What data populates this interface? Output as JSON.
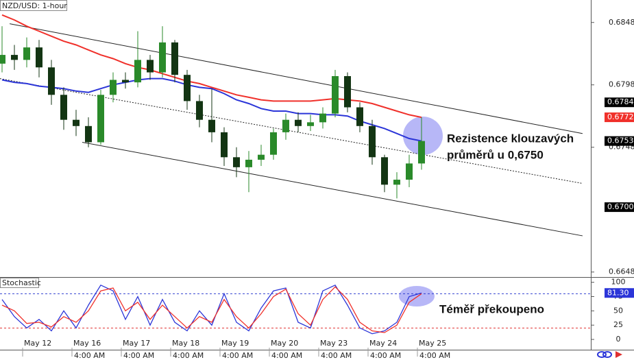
{
  "chart_data": [
    {
      "type": "candlestick",
      "title": "NZD/USD: 1-hour",
      "x": [
        -10,
        -4,
        2,
        8,
        14,
        20,
        26,
        32,
        38,
        44,
        50,
        56,
        62,
        68,
        74,
        80,
        86,
        92,
        98,
        104,
        110,
        116,
        122,
        128,
        134,
        140,
        146,
        152,
        158,
        164,
        170,
        176,
        182,
        188,
        194
      ],
      "open": [
        0.6815,
        0.6822,
        0.6818,
        0.6828,
        0.6812,
        0.679,
        0.677,
        0.6765,
        0.6752,
        0.679,
        0.6802,
        0.68,
        0.6818,
        0.6808,
        0.6832,
        0.6806,
        0.6785,
        0.677,
        0.676,
        0.674,
        0.6732,
        0.6738,
        0.6742,
        0.676,
        0.677,
        0.6765,
        0.6768,
        0.6775,
        0.6805,
        0.678,
        0.6765,
        0.674,
        0.6718,
        0.6722,
        0.6735
      ],
      "high": [
        0.6845,
        0.683,
        0.6836,
        0.6834,
        0.6818,
        0.6796,
        0.6778,
        0.6772,
        0.6794,
        0.6808,
        0.6808,
        0.6841,
        0.6822,
        0.6845,
        0.6834,
        0.681,
        0.679,
        0.6795,
        0.6764,
        0.6748,
        0.6745,
        0.675,
        0.6763,
        0.6775,
        0.6776,
        0.6774,
        0.678,
        0.681,
        0.6808,
        0.6784,
        0.677,
        0.6742,
        0.6728,
        0.6742,
        0.6772
      ],
      "low": [
        0.6808,
        0.681,
        0.6812,
        0.6804,
        0.6782,
        0.6762,
        0.6757,
        0.6748,
        0.675,
        0.6784,
        0.6795,
        0.6796,
        0.6802,
        0.6804,
        0.68,
        0.6778,
        0.6764,
        0.6752,
        0.6733,
        0.6724,
        0.6712,
        0.6733,
        0.6738,
        0.6754,
        0.676,
        0.6761,
        0.6763,
        0.6772,
        0.6776,
        0.676,
        0.6734,
        0.6712,
        0.6707,
        0.6716,
        0.673
      ],
      "close": [
        0.6822,
        0.6818,
        0.6828,
        0.6812,
        0.679,
        0.677,
        0.6765,
        0.6752,
        0.679,
        0.6802,
        0.68,
        0.6818,
        0.6808,
        0.6832,
        0.6806,
        0.6785,
        0.677,
        0.676,
        0.674,
        0.6732,
        0.6738,
        0.6742,
        0.676,
        0.677,
        0.6765,
        0.6768,
        0.6775,
        0.6805,
        0.678,
        0.6765,
        0.674,
        0.6718,
        0.6722,
        0.6735,
        0.6753
      ],
      "up_color": "#2a8a2a",
      "down_color": "#133513",
      "moving_averages": [
        {
          "color": "#f0302a",
          "values": [
            0.6854,
            0.685,
            0.6845,
            0.6841,
            0.6837,
            0.6833,
            0.683,
            0.6826,
            0.6822,
            0.6819,
            0.6815,
            0.6812,
            0.681,
            0.6807,
            0.6804,
            0.6801,
            0.6799,
            0.6796,
            0.6793,
            0.679,
            0.6788,
            0.6786,
            0.6785,
            0.6785,
            0.6785,
            0.6785,
            0.6786,
            0.6787,
            0.6786,
            0.6785,
            0.6783,
            0.678,
            0.6777,
            0.6774,
            0.6772
          ]
        },
        {
          "color": "#2b35d8",
          "values": [
            0.6802,
            0.68,
            0.6799,
            0.6797,
            0.6796,
            0.6795,
            0.6793,
            0.6792,
            0.6795,
            0.6798,
            0.68,
            0.6802,
            0.6803,
            0.6803,
            0.6801,
            0.6798,
            0.6796,
            0.6795,
            0.6791,
            0.6786,
            0.6783,
            0.6779,
            0.6777,
            0.6777,
            0.6775,
            0.6775,
            0.6774,
            0.6774,
            0.6773,
            0.6769,
            0.6766,
            0.6763,
            0.6759,
            0.6755,
            0.6753
          ]
        }
      ],
      "trendlines": [
        {
          "x": [
            -6.3,
            272.3
          ],
          "values": [
            0.6847,
            0.6759
          ],
          "dashed": false
        },
        {
          "x": [
            29,
            272.3
          ],
          "values": [
            0.6752,
            0.6677
          ],
          "dashed": false
        },
        {
          "x": [
            -11,
            272.3
          ],
          "values": [
            0.6803,
            0.6719
          ],
          "dashed": true
        }
      ],
      "xlim": [
        -11,
        276.33
      ],
      "ylim": [
        0.6644,
        0.6866
      ],
      "yticks": [
        0.6848,
        0.6798,
        0.6748,
        0.6648
      ],
      "price_markers": [
        {
          "value": 0.6784,
          "color": "#000000"
        },
        {
          "value": 0.6772,
          "color": "#f0302a"
        },
        {
          "value": 0.6753,
          "color": "#000000"
        },
        {
          "value": {
            "value": 0.67,
            "label": "0.6700"
          },
          "color": "#000000"
        }
      ],
      "annotation_lines": [
        "Rezistence klouzavých",
        "průměrů u 0,6750"
      ]
    },
    {
      "type": "line",
      "title": "Stochastic",
      "x": [
        -10,
        -4,
        2,
        8,
        14,
        20,
        26,
        32,
        38,
        44,
        50,
        56,
        62,
        68,
        74,
        80,
        86,
        92,
        98,
        104,
        110,
        116,
        122,
        128,
        134,
        140,
        146,
        152,
        158,
        164,
        170,
        176,
        182,
        188,
        194
      ],
      "series": [
        {
          "color": "#2b35d8",
          "values": [
            70,
            40,
            20,
            35,
            15,
            50,
            20,
            60,
            95,
            85,
            35,
            75,
            25,
            70,
            30,
            15,
            50,
            25,
            80,
            30,
            15,
            55,
            85,
            90,
            30,
            20,
            85,
            95,
            60,
            20,
            10,
            15,
            30,
            75,
            81.3
          ]
        },
        {
          "color": "#f0302a",
          "values": [
            60,
            50,
            28,
            30,
            22,
            40,
            30,
            50,
            85,
            90,
            50,
            65,
            35,
            60,
            40,
            20,
            40,
            30,
            70,
            40,
            20,
            45,
            75,
            88,
            45,
            25,
            70,
            92,
            70,
            30,
            15,
            12,
            25,
            65,
            80
          ]
        }
      ],
      "levels": [
        {
          "value": 80,
          "color": "#3040d0"
        },
        {
          "value": 20,
          "color": "#e03030"
        }
      ],
      "xlim": [
        -11,
        276.33
      ],
      "ylim": [
        -12,
        108
      ],
      "yticks": [
        100,
        75,
        50,
        25,
        0
      ],
      "marker": {
        "value": {
          "value": 81.3,
          "label": "81.30"
        },
        "color": "#2b35d8"
      },
      "xticks": [
        {
          "value": 0,
          "label": "May 12"
        },
        {
          "value": 24,
          "label": "May 16"
        },
        {
          "value": 48,
          "label": "May 17"
        },
        {
          "value": 72,
          "label": "May 18"
        },
        {
          "value": 96,
          "label": "May 19"
        },
        {
          "value": 120,
          "label": "May 20"
        },
        {
          "value": 144,
          "label": "May 23"
        },
        {
          "value": 168,
          "label": "May 24"
        },
        {
          "value": 192,
          "label": "May 25"
        }
      ],
      "time_ticks": [
        {
          "value": 24,
          "label": "4:00 AM"
        },
        {
          "value": 48,
          "label": "4:00 AM"
        },
        {
          "value": 72,
          "label": "4:00 AM"
        },
        {
          "value": 96,
          "label": "4:00 AM"
        },
        {
          "value": 120,
          "label": "4:00 AM"
        },
        {
          "value": 144,
          "label": "4:00 AM"
        },
        {
          "value": 168,
          "label": "4:00 AM"
        },
        {
          "value": 192,
          "label": "4:00 AM"
        }
      ],
      "annotation": "Téměř překoupeno"
    }
  ]
}
